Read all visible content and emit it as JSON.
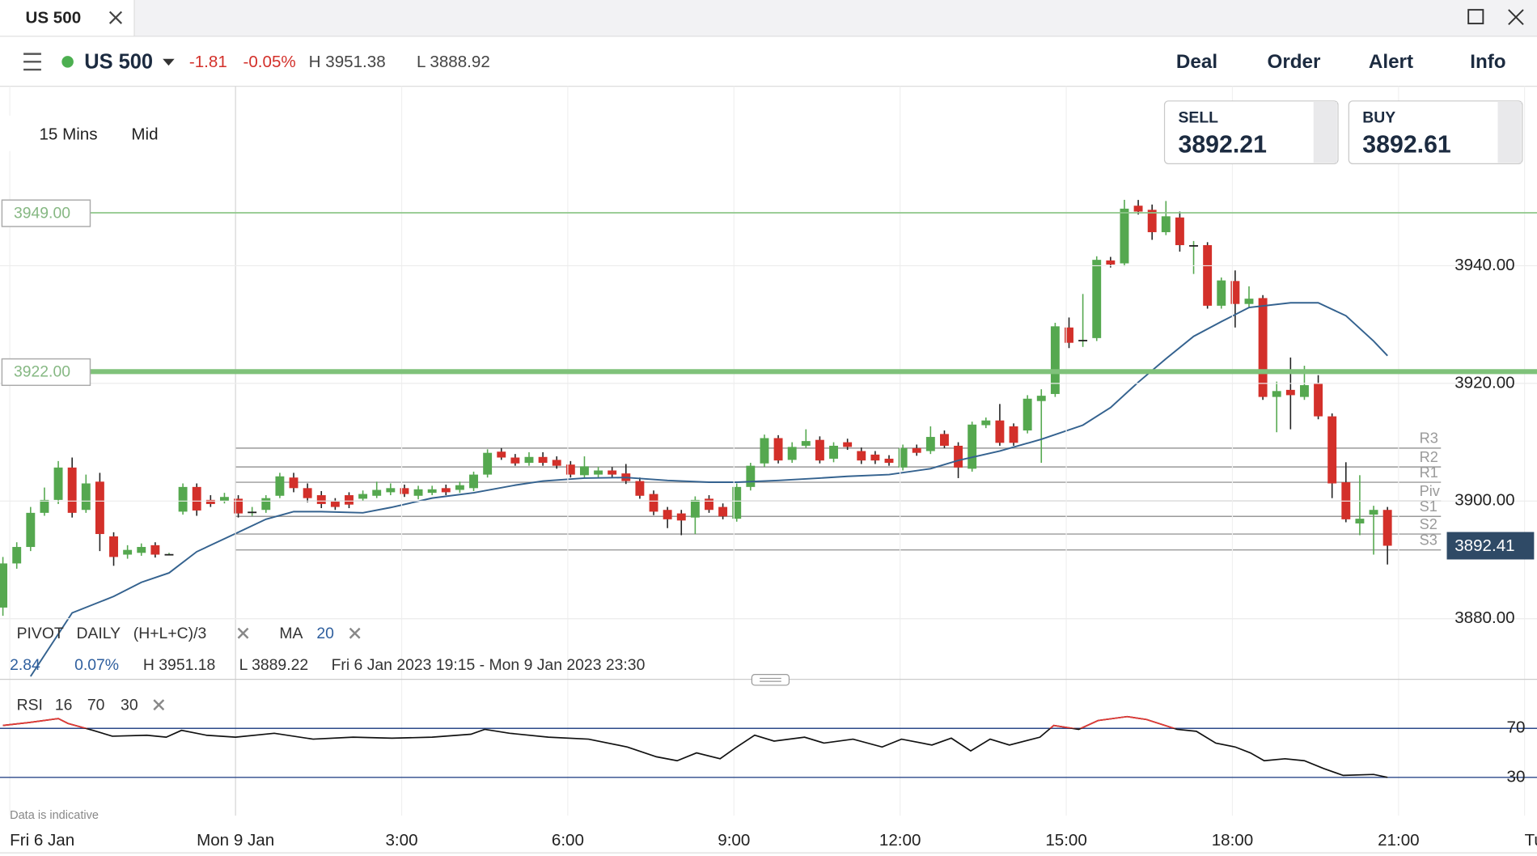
{
  "tab": {
    "title": "US 500"
  },
  "header": {
    "market": "US 500",
    "change": "-1.81",
    "change_pct": "-0.05%",
    "high": "H 3951.38",
    "low": "L 3888.92",
    "nav": [
      "Deal",
      "Order",
      "Alert",
      "Info"
    ]
  },
  "quote": {
    "sell_label": "SELL",
    "sell": "3892.21",
    "buy_label": "BUY",
    "buy": "3892.61"
  },
  "chart_settings": {
    "interval": "15 Mins",
    "price": "Mid"
  },
  "indicators": {
    "pivot": [
      "PIVOT",
      "DAILY",
      "(H+L+C)/3"
    ],
    "ma": [
      "MA",
      "20"
    ],
    "stats": [
      "2.84",
      "0.07%",
      "H 3951.18",
      "L 3889.22",
      "Fri 6 Jan 2023 19:15 - Mon 9 Jan 2023 23:30"
    ],
    "rsi": [
      "RSI",
      "16",
      "70",
      "30"
    ]
  },
  "footnote": "Data is indicative",
  "chart_data": [
    {
      "type": "candlestick",
      "up_color": "#55a84f",
      "down_color": "#d3302a",
      "ohlc": [
        [
          3881.9,
          3890.5,
          3880.5,
          3889.4
        ],
        [
          3889.4,
          3893,
          3888.5,
          3892.2
        ],
        [
          3892.2,
          3899,
          3891.5,
          3898
        ],
        [
          3898,
          3902.3,
          3897.5,
          3900.2
        ],
        [
          3900.2,
          3906.8,
          3899.5,
          3905.7
        ],
        [
          3905.7,
          3907.4,
          3897.2,
          3898
        ],
        [
          3898.5,
          3904.5,
          3898,
          3903
        ],
        [
          3903.3,
          3904.8,
          3891.5,
          3894.4
        ],
        [
          3894,
          3894.7,
          3889,
          3890.5
        ],
        [
          3890.9,
          3892.5,
          3890.2,
          3891.7
        ],
        [
          3891.2,
          3892.8,
          3890.7,
          3892.2
        ],
        [
          3892.5,
          3893,
          3890.4,
          3890.9
        ],
        [
          3891,
          3891.2,
          3890.8,
          3891
        ],
        [
          3898.2,
          3903,
          3897.7,
          3902.4
        ],
        [
          3902.4,
          3903,
          3897.5,
          3898.4
        ],
        [
          3900.2,
          3901,
          3899,
          3899.5
        ],
        [
          3900,
          3901.4,
          3899.6,
          3900.7
        ],
        [
          3900.4,
          3901,
          3897.2,
          3897.9
        ],
        [
          3898.2,
          3899,
          3897.5,
          3898.2
        ],
        [
          3898.5,
          3901,
          3898,
          3900.5
        ],
        [
          3900.9,
          3904.8,
          3900.5,
          3904.2
        ],
        [
          3904,
          3904.8,
          3901.5,
          3902.2
        ],
        [
          3902.2,
          3903,
          3899.8,
          3900.5
        ],
        [
          3901,
          3901.7,
          3898.8,
          3899.5
        ],
        [
          3899.9,
          3900.5,
          3898.5,
          3899
        ],
        [
          3901,
          3901.5,
          3898.8,
          3899.4
        ],
        [
          3900.4,
          3901.8,
          3900,
          3901.2
        ],
        [
          3900.9,
          3903.3,
          3900.5,
          3901.9
        ],
        [
          3901.5,
          3903,
          3901,
          3902.2
        ],
        [
          3902.2,
          3902.8,
          3900.7,
          3901.2
        ],
        [
          3900.9,
          3902.6,
          3900.3,
          3902
        ],
        [
          3901.4,
          3902.6,
          3901,
          3902
        ],
        [
          3902.2,
          3902.8,
          3901,
          3901.5
        ],
        [
          3901.9,
          3903.3,
          3901.4,
          3902.7
        ],
        [
          3902.2,
          3905,
          3901.7,
          3904.5
        ],
        [
          3904.5,
          3908.8,
          3904,
          3908.2
        ],
        [
          3908.4,
          3909,
          3907,
          3907.4
        ],
        [
          3907.4,
          3908,
          3906,
          3906.4
        ],
        [
          3906.5,
          3908.3,
          3906,
          3907.5
        ],
        [
          3907.5,
          3908.3,
          3906,
          3906.5
        ],
        [
          3907,
          3907.6,
          3905.5,
          3906
        ],
        [
          3906.2,
          3906.8,
          3904,
          3904.5
        ],
        [
          3904.4,
          3907.6,
          3903.9,
          3905.9
        ],
        [
          3904.5,
          3905.8,
          3904,
          3905.2
        ],
        [
          3905.2,
          3905.8,
          3904,
          3904.5
        ],
        [
          3904.7,
          3906.3,
          3902.9,
          3903.4
        ],
        [
          3903.4,
          3904,
          3900.4,
          3900.9
        ],
        [
          3901.2,
          3901.8,
          3897.6,
          3898.2
        ],
        [
          3898.5,
          3899,
          3895.4,
          3896.9
        ],
        [
          3897.9,
          3898.5,
          3894.2,
          3896.7
        ],
        [
          3897.2,
          3900.8,
          3894.4,
          3900.2
        ],
        [
          3900.4,
          3901,
          3898,
          3898.5
        ],
        [
          3899,
          3899.6,
          3896.9,
          3897.4
        ],
        [
          3897,
          3903,
          3896.5,
          3902.4
        ],
        [
          3902.4,
          3906.5,
          3901.8,
          3906
        ],
        [
          3906.4,
          3911.3,
          3905.8,
          3910.7
        ],
        [
          3910.7,
          3911.2,
          3906.4,
          3906.9
        ],
        [
          3907,
          3910,
          3906.5,
          3909.2
        ],
        [
          3909.4,
          3912.2,
          3909,
          3910.2
        ],
        [
          3910.4,
          3911,
          3906.4,
          3906.9
        ],
        [
          3907.2,
          3910,
          3906.6,
          3909.4
        ],
        [
          3910,
          3910.6,
          3908.7,
          3909.2
        ],
        [
          3908.5,
          3909.1,
          3906.3,
          3906.9
        ],
        [
          3907.9,
          3908.5,
          3906.3,
          3906.9
        ],
        [
          3907.2,
          3907.8,
          3906,
          3906.5
        ],
        [
          3905.7,
          3909.6,
          3905.2,
          3909
        ],
        [
          3909,
          3909.6,
          3907.7,
          3908.2
        ],
        [
          3908.5,
          3912.7,
          3908,
          3910.9
        ],
        [
          3911.4,
          3912,
          3909,
          3909.4
        ],
        [
          3909.4,
          3910,
          3903.9,
          3905.7
        ],
        [
          3905.5,
          3913.5,
          3905,
          3913
        ],
        [
          3912.9,
          3914.2,
          3912.4,
          3913.7
        ],
        [
          3913.7,
          3916.5,
          3909.4,
          3909.9
        ],
        [
          3912.7,
          3913.2,
          3909.4,
          3909.9
        ],
        [
          3912,
          3918,
          3911.5,
          3917.4
        ],
        [
          3917,
          3919,
          3906.5,
          3917.9
        ],
        [
          3918.2,
          3930.3,
          3917.7,
          3929.7
        ],
        [
          3929.5,
          3931.2,
          3926,
          3926.9
        ],
        [
          3927.4,
          3935.2,
          3926.2,
          3927.4
        ],
        [
          3927.7,
          3941.6,
          3927.2,
          3941
        ],
        [
          3940.9,
          3941.5,
          3939.7,
          3940.2
        ],
        [
          3940.4,
          3951.2,
          3939.9,
          3949.7
        ],
        [
          3950.2,
          3951.18,
          3948.7,
          3949.2
        ],
        [
          3949.5,
          3950.4,
          3944.4,
          3945.7
        ],
        [
          3945.7,
          3951,
          3945.2,
          3948.4
        ],
        [
          3948.2,
          3949.2,
          3942.4,
          3943.5
        ],
        [
          3943.5,
          3944.2,
          3938.6,
          3943.5
        ],
        [
          3943.5,
          3944,
          3932.7,
          3933.2
        ],
        [
          3933.2,
          3938,
          3932.7,
          3937.5
        ],
        [
          3937.4,
          3939.2,
          3929.5,
          3933.5
        ],
        [
          3933.5,
          3936.5,
          3933,
          3934.4
        ],
        [
          3934.5,
          3935,
          3917.2,
          3917.7
        ],
        [
          3917.7,
          3920.3,
          3911.7,
          3918.7
        ],
        [
          3918.9,
          3924.4,
          3912.2,
          3918
        ],
        [
          3917.7,
          3923,
          3917.2,
          3919.7
        ],
        [
          3920,
          3921.4,
          3913.9,
          3914.4
        ],
        [
          3914.4,
          3914.9,
          3900.5,
          3903
        ],
        [
          3903.2,
          3906.6,
          3896.4,
          3896.9
        ],
        [
          3896.2,
          3904.4,
          3894.2,
          3897
        ],
        [
          3897.7,
          3899.2,
          3890.9,
          3898.5
        ],
        [
          3898.5,
          3899,
          3889.22,
          3892.41
        ]
      ],
      "ma": {
        "color": "#34628f",
        "x": [
          2,
          5,
          8,
          10,
          12,
          14,
          17,
          19,
          21,
          23,
          26,
          28,
          31,
          34,
          37,
          39,
          42,
          45,
          48,
          51,
          53,
          56,
          59,
          61,
          64,
          67,
          69,
          72,
          75,
          78,
          80,
          82,
          84,
          86,
          88,
          90,
          93,
          95,
          97,
          99,
          100
        ],
        "values": [
          3870.2,
          3881,
          3883.8,
          3886.2,
          3887.8,
          3891.4,
          3894.7,
          3896.9,
          3898.2,
          3898.2,
          3898,
          3898.9,
          3900.5,
          3901.4,
          3902.7,
          3903.4,
          3903.9,
          3904,
          3903.5,
          3903.2,
          3903.2,
          3903.5,
          3903.9,
          3904.2,
          3904.5,
          3905.5,
          3906.9,
          3908.5,
          3910.5,
          3912.9,
          3915.9,
          3920.2,
          3924.2,
          3928,
          3930.5,
          3932.9,
          3933.7,
          3933.7,
          3931.5,
          3927.2,
          3924.7
        ]
      },
      "pivots": {
        "labels": [
          "R3",
          "R2",
          "R1",
          "Piv",
          "S1",
          "S2",
          "S3"
        ],
        "values": [
          3909,
          3905.8,
          3903.2,
          3900,
          3897.4,
          3894.4,
          3891.7
        ],
        "start": 16.8,
        "color": "#9a9a9a"
      },
      "levels": [
        {
          "value": 3949,
          "label": "3949.00",
          "color": "#8ec78a",
          "width": 1.5
        },
        {
          "value": 3922,
          "label": "3922.00",
          "color": "#7fc27a",
          "width": 5
        }
      ],
      "last": 3892.41,
      "xlim": [
        -0.21,
        110.8
      ],
      "xticks": [
        {
          "value": 0.5,
          "label": "Fri 6 Jan"
        },
        {
          "value": 16.8,
          "label": "Mon 9 Jan"
        },
        {
          "value": 28.8,
          "label": "3:00"
        },
        {
          "value": 40.8,
          "label": "6:00"
        },
        {
          "value": 52.8,
          "label": "9:00"
        },
        {
          "value": 64.8,
          "label": "12:00"
        },
        {
          "value": 76.8,
          "label": "15:00"
        },
        {
          "value": 88.8,
          "label": "18:00"
        },
        {
          "value": 100.8,
          "label": "21:00"
        },
        {
          "value": 109.9,
          "label": "Tu"
        }
      ],
      "ylim": [
        3869.7,
        3970.5
      ],
      "yticks": [
        {
          "value": 3880,
          "label": "3880.00"
        },
        {
          "value": 3900,
          "label": "3900.00"
        },
        {
          "value": 3920,
          "label": "3920.00"
        },
        {
          "value": 3940,
          "label": "3940.00"
        }
      ],
      "grid": true
    },
    {
      "type": "line",
      "color": "#111111",
      "over_color": "#e53935",
      "over": 70,
      "line_color": "#2c4a8a",
      "x": [
        0,
        1.9,
        4,
        4.7,
        6.5,
        7.9,
        10.4,
        11.8,
        12.9,
        14.7,
        16.8,
        19.6,
        22.4,
        25.3,
        28.1,
        31,
        33.8,
        34.8,
        36.6,
        39.4,
        42.3,
        45.1,
        47.2,
        48.7,
        50.1,
        51.8,
        52.9,
        54.3,
        55.7,
        57.9,
        59.3,
        61.4,
        63.5,
        64.9,
        67.1,
        68.5,
        69.9,
        71.3,
        72.7,
        74.9,
        75.9,
        77.7,
        79.1,
        81.2,
        82.6,
        84.8,
        86.2,
        87.6,
        89,
        90.1,
        91.1,
        92.6,
        94,
        95.4,
        96.8,
        99,
        100
      ],
      "values": [
        72.4,
        74.8,
        78,
        74,
        68.4,
        63.6,
        64.4,
        62.8,
        68.4,
        64.4,
        62.8,
        66,
        61.2,
        62.8,
        62,
        62.8,
        65.2,
        69.2,
        66,
        62.8,
        61.2,
        54.8,
        46.8,
        43.6,
        50,
        45.2,
        54,
        64.4,
        59.6,
        62.8,
        58,
        61.2,
        54.8,
        61.2,
        56.4,
        62,
        51.6,
        61.2,
        56.4,
        62.8,
        72.4,
        69.2,
        76.4,
        79.6,
        77.2,
        69.2,
        67.6,
        58,
        54.8,
        50,
        43.6,
        45.2,
        43.6,
        37.2,
        31.6,
        32.4,
        30
      ],
      "xlim": [
        -0.21,
        110.8
      ],
      "ylim": [
        -1.2,
        98.8
      ],
      "yticks": [
        30,
        70
      ]
    }
  ]
}
